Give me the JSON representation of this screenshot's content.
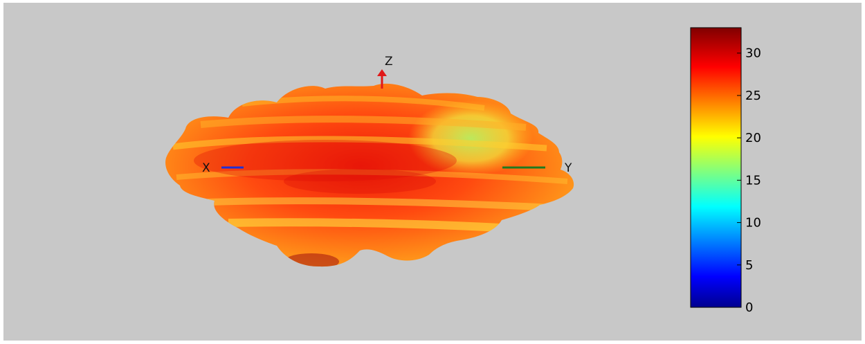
{
  "chart_data": {
    "type": "surface-3d-radiation-pattern",
    "axes_labels": {
      "x": "X",
      "y": "Y",
      "z": "Z"
    },
    "axis_colors": {
      "x": "#1f2fd6",
      "y": "#1f7a1f",
      "z": "#e01818"
    },
    "colorbar": {
      "colormap": "jet",
      "range": [
        0,
        33
      ],
      "ticks": [
        0,
        5,
        10,
        15,
        20,
        25,
        30
      ],
      "tick_labels": [
        "0",
        "5",
        "10",
        "15",
        "20",
        "25",
        "30"
      ]
    },
    "background_color": "#c8c8c8",
    "grid": false
  }
}
